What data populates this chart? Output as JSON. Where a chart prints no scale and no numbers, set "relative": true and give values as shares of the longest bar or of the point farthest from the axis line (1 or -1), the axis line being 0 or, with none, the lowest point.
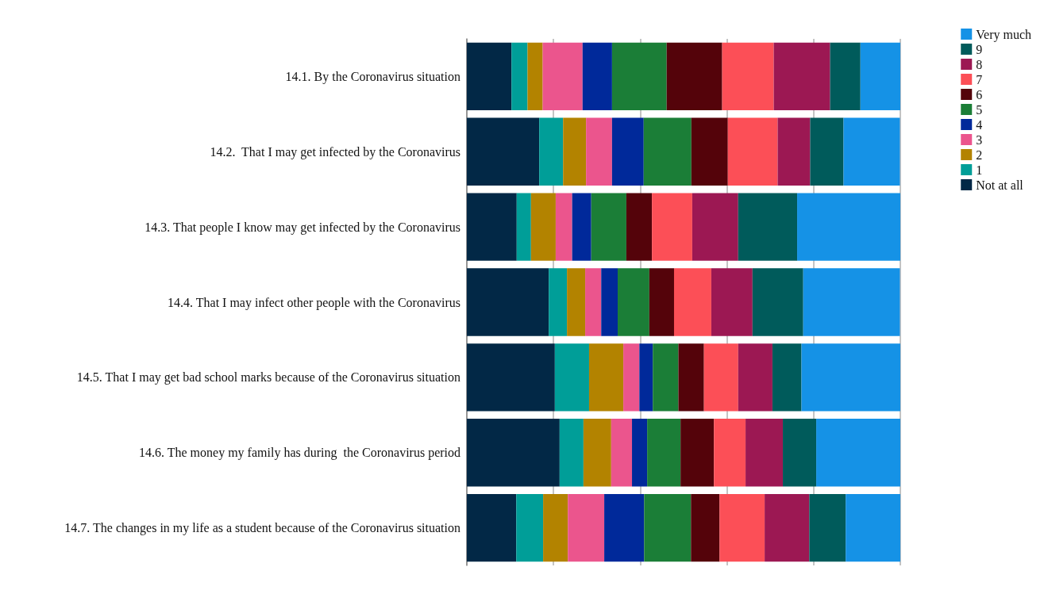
{
  "chart_data": {
    "type": "bar",
    "orientation": "horizontal",
    "stacked": true,
    "relative": true,
    "grid": "x",
    "legend": "top right",
    "categories": [
      "14.1. By the Coronavirus situation",
      "14.2.  That I may get infected by the Coronavirus",
      "14.3. That people I know may get infected by the Coronavirus",
      "14.4. That I may infect other people with the Coronavirus",
      "14.5. That I may get bad school marks because of the Coronavirus situation",
      "14.6. The money my family has during  the Coronavirus period",
      "14.7. The changes in my life as a student because of the Coronavirus situation"
    ],
    "series": [
      {
        "name": "Not at all",
        "color": "#022846",
        "values": [
          0.103,
          0.167,
          0.115,
          0.189,
          0.203,
          0.214,
          0.114
        ]
      },
      {
        "name": "1",
        "color": "#009e98",
        "values": [
          0.037,
          0.055,
          0.033,
          0.042,
          0.079,
          0.055,
          0.062
        ]
      },
      {
        "name": "2",
        "color": "#b38300",
        "values": [
          0.035,
          0.053,
          0.057,
          0.042,
          0.079,
          0.064,
          0.057
        ]
      },
      {
        "name": "3",
        "color": "#eb558d",
        "values": [
          0.092,
          0.06,
          0.038,
          0.037,
          0.037,
          0.048,
          0.084
        ]
      },
      {
        "name": "4",
        "color": "#00299a",
        "values": [
          0.068,
          0.073,
          0.044,
          0.038,
          0.031,
          0.035,
          0.092
        ]
      },
      {
        "name": "5",
        "color": "#1b7e37",
        "values": [
          0.126,
          0.11,
          0.081,
          0.073,
          0.059,
          0.077,
          0.108
        ]
      },
      {
        "name": "6",
        "color": "#54030a",
        "values": [
          0.128,
          0.084,
          0.059,
          0.057,
          0.059,
          0.077,
          0.066
        ]
      },
      {
        "name": "7",
        "color": "#fc4f57",
        "values": [
          0.119,
          0.115,
          0.093,
          0.086,
          0.079,
          0.073,
          0.104
        ]
      },
      {
        "name": "8",
        "color": "#9c1853",
        "values": [
          0.13,
          0.075,
          0.106,
          0.095,
          0.079,
          0.086,
          0.103
        ]
      },
      {
        "name": "9",
        "color": "#005b5b",
        "values": [
          0.07,
          0.077,
          0.136,
          0.117,
          0.067,
          0.077,
          0.084
        ]
      },
      {
        "name": "Very much",
        "color": "#1592e6",
        "values": [
          0.092,
          0.13,
          0.238,
          0.223,
          0.228,
          0.194,
          0.126
        ]
      }
    ]
  }
}
